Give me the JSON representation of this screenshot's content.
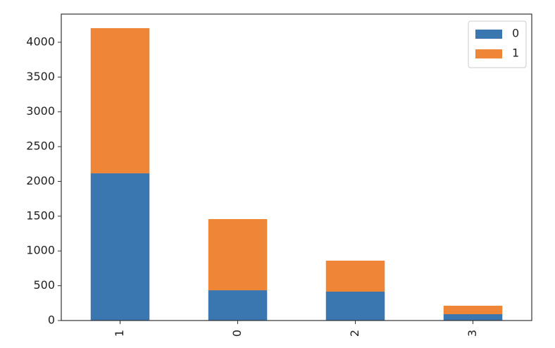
{
  "chart_data": {
    "type": "stacked_bar",
    "categories": [
      "1",
      "0",
      "2",
      "3"
    ],
    "series": [
      {
        "name": "0",
        "color": "#3a76af",
        "values": [
          2116,
          435,
          415,
          91
        ]
      },
      {
        "name": "1",
        "color": "#ef8536",
        "values": [
          2087,
          1023,
          446,
          122
        ]
      }
    ],
    "ylim": [
      0,
      4405
    ],
    "yticks": [
      0,
      500,
      1000,
      1500,
      2000,
      2500,
      3000,
      3500,
      4000
    ],
    "grid": false,
    "legend": "upper right"
  }
}
